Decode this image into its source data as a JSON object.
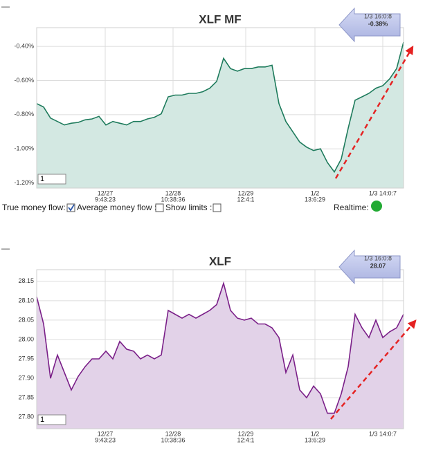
{
  "chart_data": [
    {
      "type": "area",
      "title": "XLF MF",
      "color": "#1e7b5c",
      "fill": "#d3e8e2",
      "grid": true,
      "xlim": [
        0,
        53
      ],
      "ylim": [
        -1.23,
        -0.29
      ],
      "yticks": [
        {
          "value": -0.4,
          "label": "-0.40%"
        },
        {
          "value": -0.6,
          "label": "-0.60%"
        },
        {
          "value": -0.8,
          "label": "-0.80%"
        },
        {
          "value": -1.0,
          "label": "-1.00%"
        },
        {
          "value": -1.2,
          "label": "-1.20%"
        }
      ],
      "xticks": [
        {
          "value": 9.9,
          "label": [
            "12/27",
            "9:43:23"
          ]
        },
        {
          "value": 19.7,
          "label": [
            "12/28",
            "10:38:36"
          ]
        },
        {
          "value": 30.2,
          "label": [
            "12/29",
            "12:4:1"
          ]
        },
        {
          "value": 40.2,
          "label": [
            "1/2",
            "13:6:29"
          ]
        },
        {
          "value": 50,
          "label": [
            "1/3 14:0:7"
          ]
        }
      ],
      "values": [
        -0.735,
        -0.755,
        -0.82,
        -0.84,
        -0.86,
        -0.85,
        -0.845,
        -0.83,
        -0.825,
        -0.81,
        -0.86,
        -0.84,
        -0.85,
        -0.86,
        -0.84,
        -0.84,
        -0.825,
        -0.815,
        -0.795,
        -0.695,
        -0.685,
        -0.685,
        -0.675,
        -0.675,
        -0.665,
        -0.645,
        -0.605,
        -0.47,
        -0.53,
        -0.545,
        -0.53,
        -0.53,
        -0.52,
        -0.52,
        -0.51,
        -0.735,
        -0.84,
        -0.9,
        -0.96,
        -0.99,
        -1.01,
        -1.0,
        -1.08,
        -1.135,
        -1.06,
        -0.88,
        -0.715,
        -0.695,
        -0.675,
        -0.645,
        -0.63,
        -0.59,
        -0.53,
        -0.375
      ],
      "annotation": {
        "time": "1/3 16:0:8",
        "value": "-0.38%"
      },
      "input": "1",
      "corner_mark": "—"
    },
    {
      "type": "area",
      "title": "XLF",
      "color": "#7a1f88",
      "fill": "#e2d2e8",
      "grid": true,
      "xlim": [
        0,
        53
      ],
      "ylim": [
        27.77,
        28.18
      ],
      "yticks": [
        28.15,
        {
          "value": 28.1,
          "label": "28.10"
        },
        28.05,
        {
          "value": 28.0,
          "label": "28.00"
        },
        27.95,
        {
          "value": 27.9,
          "label": "27.90"
        },
        27.85,
        {
          "value": 27.8,
          "label": "27.80"
        }
      ],
      "xticks": [
        {
          "value": 9.9,
          "label": [
            "12/27",
            "9:43:23"
          ]
        },
        {
          "value": 19.7,
          "label": [
            "12/28",
            "10:38:36"
          ]
        },
        {
          "value": 30.2,
          "label": [
            "12/29",
            "12:4:1"
          ]
        },
        {
          "value": 40.2,
          "label": [
            "1/2",
            "13:6:29"
          ]
        },
        {
          "value": 50,
          "label": [
            "1/3 14:0:7"
          ]
        }
      ],
      "values": [
        28.11,
        28.04,
        27.9,
        27.96,
        27.915,
        27.87,
        27.905,
        27.93,
        27.95,
        27.95,
        27.97,
        27.95,
        27.995,
        27.975,
        27.97,
        27.95,
        27.96,
        27.95,
        27.96,
        28.075,
        28.065,
        28.055,
        28.065,
        28.055,
        28.065,
        28.075,
        28.09,
        28.145,
        28.075,
        28.055,
        28.05,
        28.055,
        28.04,
        28.04,
        28.03,
        28.005,
        27.915,
        27.96,
        27.87,
        27.85,
        27.88,
        27.86,
        27.81,
        27.81,
        27.86,
        27.93,
        28.065,
        28.03,
        28.005,
        28.05,
        28.005,
        28.02,
        28.03,
        28.065
      ],
      "annotation": {
        "time": "1/3 16:0:8",
        "value": "28.07"
      },
      "input": "1",
      "corner_mark": "—"
    }
  ],
  "controls": {
    "true_money_flow": {
      "label": "True money flow:",
      "checked": true
    },
    "average_money_flow": {
      "label": "Average money flow :",
      "checked": false
    },
    "show_limits": {
      "label": "Show limits :",
      "checked": false
    },
    "realtime": {
      "label": "Realtime:",
      "on": true
    }
  }
}
